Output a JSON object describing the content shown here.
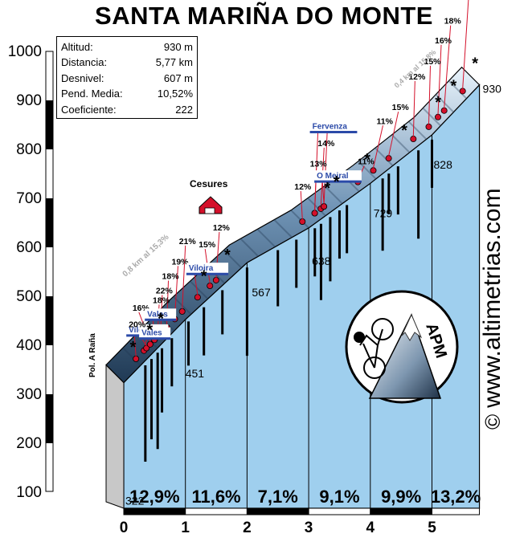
{
  "title": "SANTA MARIÑA DO MONTE",
  "info": {
    "rows": [
      {
        "label": "Altitud:",
        "value": "930 m"
      },
      {
        "label": "Distancia:",
        "value": "5,77 km"
      },
      {
        "label": "Desnivel:",
        "value": "607 m"
      },
      {
        "label": "Pend. Media:",
        "value": "10,52%"
      },
      {
        "label": "Coeficiente:",
        "value": "222"
      }
    ]
  },
  "watermark": {
    "copyright": "©",
    "site": "www.altimetrias.com"
  },
  "logo": {
    "text": "APM"
  },
  "colors": {
    "profile_face": "#9fcfee",
    "profile_top": "#3e5f80",
    "marker": "#d4102a",
    "sign_blue": "#2b4aa8",
    "sign_brown": "#8b3a1a"
  },
  "chart_data": {
    "type": "area",
    "title": "SANTA MARIÑA DO MONTE",
    "xlabel": "",
    "ylabel": "",
    "xlim": [
      0,
      5.77
    ],
    "ylim": [
      100,
      1000
    ],
    "x_ticks": [
      "0",
      "1",
      "2",
      "3",
      "4",
      "5"
    ],
    "y_ticks": [
      "100",
      "200",
      "300",
      "400",
      "500",
      "600",
      "700",
      "800",
      "900",
      "1000"
    ],
    "profile": {
      "x": [
        0,
        1,
        2,
        3,
        4,
        5,
        5.77
      ],
      "y": [
        322,
        451,
        567,
        638,
        729,
        828,
        930
      ]
    },
    "km_altitude_labels": [
      {
        "x": 0,
        "label": "322"
      },
      {
        "x": 1,
        "label": "451"
      },
      {
        "x": 2,
        "label": "567"
      },
      {
        "x": 3,
        "label": "638"
      },
      {
        "x": 4,
        "label": "729"
      },
      {
        "x": 5,
        "label": "828"
      },
      {
        "x": 5.77,
        "label": "930"
      }
    ],
    "segments": [
      {
        "from": 0,
        "to": 1,
        "label": "12,9%"
      },
      {
        "from": 1,
        "to": 2,
        "label": "11,6%"
      },
      {
        "from": 2,
        "to": 3,
        "label": "7,1%"
      },
      {
        "from": 3,
        "to": 4,
        "label": "9,1%"
      },
      {
        "from": 4,
        "to": 5,
        "label": "9,9%"
      },
      {
        "from": 5,
        "to": 5.77,
        "label": "13,2%"
      }
    ],
    "point_labels": [
      {
        "x": 0.25,
        "label": "Viloira"
      },
      {
        "x": 0.38,
        "label": "Vales"
      },
      {
        "x": 0.42,
        "label": "20%"
      },
      {
        "x": 0.48,
        "label": "16%"
      },
      {
        "x": 0.55,
        "label": "Vales"
      },
      {
        "x": 0.6,
        "label": "18%"
      },
      {
        "x": 0.65,
        "label": "22%"
      },
      {
        "x": 0.75,
        "label": "18%"
      },
      {
        "x": 0.88,
        "label": "19%"
      },
      {
        "x": 1.0,
        "label": "21%"
      },
      {
        "x": 1.25,
        "label": "Viloira"
      },
      {
        "x": 1.45,
        "label": "15%"
      },
      {
        "x": 1.55,
        "label": "12%"
      },
      {
        "x": 2.95,
        "label": "12%"
      },
      {
        "x": 3.15,
        "label": "13%"
      },
      {
        "x": 3.25,
        "label": "14%"
      },
      {
        "x": 3.3,
        "label": "13%"
      },
      {
        "x": 3.15,
        "label": "Fervenza"
      },
      {
        "x": 3.3,
        "label": "O Meiral"
      },
      {
        "x": 3.85,
        "label": "11%"
      },
      {
        "x": 4.1,
        "label": "11%"
      },
      {
        "x": 4.35,
        "label": "15%"
      },
      {
        "x": 4.75,
        "label": "12%"
      },
      {
        "x": 5.0,
        "label": "15%"
      },
      {
        "x": 5.15,
        "label": "16%"
      },
      {
        "x": 5.25,
        "label": "18%"
      },
      {
        "x": 5.55,
        "label": "15%"
      }
    ],
    "annotations": [
      {
        "label": "Pol. A Raña"
      },
      {
        "label": "Cesures"
      },
      {
        "label": "0,8 km al 15,3%"
      },
      {
        "label": "0,4 km al 15,8%"
      }
    ]
  }
}
